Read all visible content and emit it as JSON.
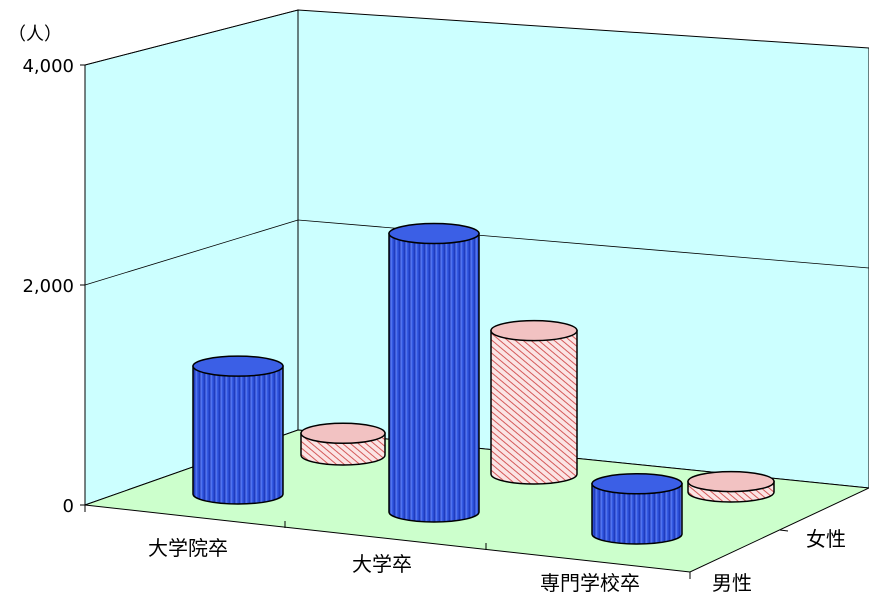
{
  "chart_data": {
    "type": "bar",
    "style": "3d-cylinder",
    "unit_label": "（人）",
    "y_ticks": [
      "0",
      "2,000",
      "4,000"
    ],
    "ylim": [
      0,
      4000
    ],
    "categories": [
      "大学院卒",
      "大学卒",
      "専門学校卒"
    ],
    "series": [
      {
        "name": "男性",
        "values": [
          1400,
          3050,
          550
        ],
        "color": "#2a4fd8"
      },
      {
        "name": "女性",
        "values": [
          250,
          1650,
          120
        ],
        "color": "#e8a0a0"
      }
    ],
    "grid": true,
    "colors": {
      "wall": "#ccffff",
      "floor": "#ccffcc"
    }
  }
}
